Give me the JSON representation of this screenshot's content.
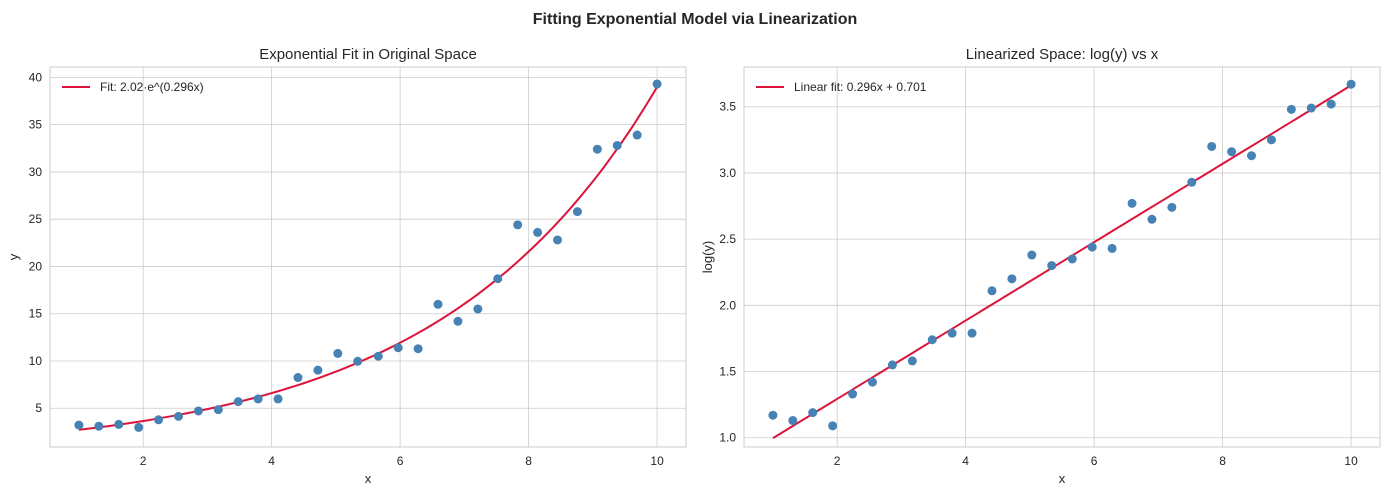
{
  "suptitle": "Fitting Exponential Model via Linearization",
  "chart_data": [
    {
      "type": "scatter",
      "title": "Exponential Fit in Original Space",
      "xlabel": "x",
      "ylabel": "y",
      "xlim": [
        0.55,
        10.45
      ],
      "ylim": [
        0.9,
        41.1
      ],
      "xticks": [
        2,
        4,
        6,
        8,
        10
      ],
      "yticks": [
        5,
        10,
        15,
        20,
        25,
        30,
        35,
        40
      ],
      "grid": true,
      "legend_position": "top-left",
      "x": [
        1.0,
        1.31,
        1.62,
        1.93,
        2.24,
        2.55,
        2.86,
        3.17,
        3.48,
        3.79,
        4.1,
        4.41,
        4.72,
        5.03,
        5.34,
        5.66,
        5.97,
        6.28,
        6.59,
        6.9,
        7.21,
        7.52,
        7.83,
        8.14,
        8.45,
        8.76,
        9.07,
        9.38,
        9.69,
        10.0
      ],
      "y": [
        3.22,
        3.1,
        3.29,
        2.97,
        3.78,
        4.14,
        4.71,
        4.85,
        5.7,
        5.99,
        5.99,
        8.25,
        9.03,
        10.8,
        9.97,
        10.5,
        11.4,
        11.3,
        16.0,
        14.2,
        15.5,
        18.7,
        24.4,
        23.6,
        22.8,
        25.8,
        32.4,
        32.8,
        33.9,
        39.3
      ],
      "point_color": "#4682b4",
      "fit": {
        "name": "Fit: 2.02·e^(0.296x)",
        "a": 2.02,
        "b": 0.296,
        "color": "#dc143c"
      }
    },
    {
      "type": "scatter",
      "title": "Linearized Space: log(y) vs x",
      "xlabel": "x",
      "ylabel": "log(y)",
      "xlim": [
        0.55,
        10.45
      ],
      "ylim": [
        0.93,
        3.8
      ],
      "xticks": [
        2,
        4,
        6,
        8,
        10
      ],
      "yticks": [
        1.0,
        1.5,
        2.0,
        2.5,
        3.0,
        3.5
      ],
      "grid": true,
      "legend_position": "top-left",
      "x": [
        1.0,
        1.31,
        1.62,
        1.93,
        2.24,
        2.55,
        2.86,
        3.17,
        3.48,
        3.79,
        4.1,
        4.41,
        4.72,
        5.03,
        5.34,
        5.66,
        5.97,
        6.28,
        6.59,
        6.9,
        7.21,
        7.52,
        7.83,
        8.14,
        8.45,
        8.76,
        9.07,
        9.38,
        9.69,
        10.0
      ],
      "y": [
        1.17,
        1.13,
        1.19,
        1.09,
        1.33,
        1.42,
        1.55,
        1.58,
        1.74,
        1.79,
        1.79,
        2.11,
        2.2,
        2.38,
        2.3,
        2.35,
        2.44,
        2.43,
        2.77,
        2.65,
        2.74,
        2.93,
        3.2,
        3.16,
        3.13,
        3.25,
        3.48,
        3.49,
        3.52,
        3.67
      ],
      "point_color": "#4682b4",
      "fit": {
        "name": "Linear fit: 0.296x + 0.701",
        "slope": 0.296,
        "intercept": 0.701,
        "color": "#dc143c"
      }
    }
  ]
}
